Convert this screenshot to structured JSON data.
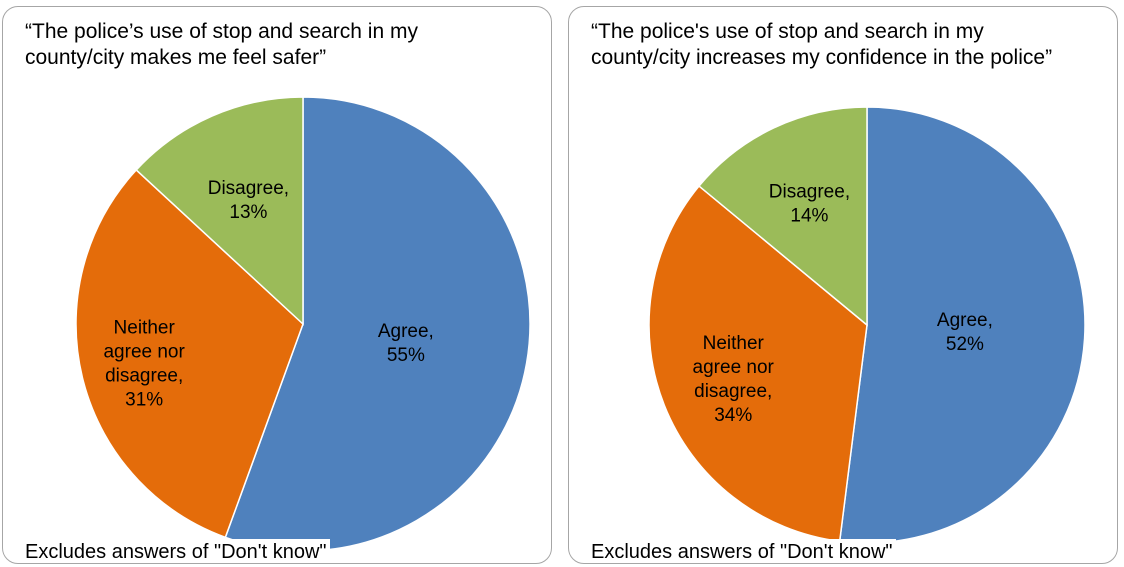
{
  "chart_data": [
    {
      "type": "pie",
      "title": "“The police’s use of stop and search in my county/city makes me feel safer”",
      "categories": [
        "Agree",
        "Neither agree nor disagree",
        "Disagree"
      ],
      "values": [
        55,
        31,
        13
      ],
      "labels": [
        "Agree,\n55%",
        "Neither\nagree nor\ndisagree,\n31%",
        "Disagree,\n13%"
      ],
      "colors": [
        "#4f81bd",
        "#e46c0a",
        "#9bbb59"
      ],
      "note": "Excludes answers of \"Don't know\""
    },
    {
      "type": "pie",
      "title": "“The police's use of stop and search in my county/city increases my confidence in the police”",
      "categories": [
        "Agree",
        "Neither agree nor disagree",
        "Disagree"
      ],
      "values": [
        52,
        34,
        14
      ],
      "labels": [
        "Agree,\n52%",
        "Neither\nagree nor\ndisagree,\n34%",
        "Disagree,\n14%"
      ],
      "colors": [
        "#4f81bd",
        "#e46c0a",
        "#9bbb59"
      ],
      "note": "Excludes answers of \"Don't know\""
    }
  ]
}
